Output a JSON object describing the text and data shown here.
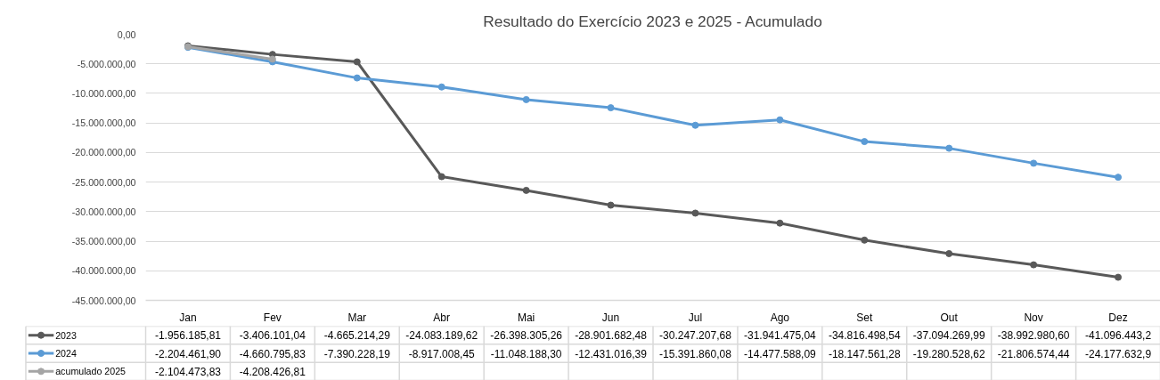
{
  "chart_data": {
    "type": "line",
    "title": "Resultado do Exercício 2023 e 2025 - Acumulado",
    "categories": [
      "Jan",
      "Fev",
      "Mar",
      "Abr",
      "Mai",
      "Jun",
      "Jul",
      "Ago",
      "Set",
      "Out",
      "Nov",
      "Dez"
    ],
    "series": [
      {
        "name": "2023",
        "color": "#595959",
        "values": [
          -1956185.81,
          -3406101.04,
          -4665214.29,
          -24083189.62,
          -26398305.26,
          -28901682.48,
          -30247207.68,
          -31941475.04,
          -34816498.54,
          -37094269.99,
          -38992980.6,
          -41096443.2
        ],
        "value_labels": [
          "-1.956.185,81",
          "-3.406.101,04",
          "-4.665.214,29",
          "-24.083.189,62",
          "-26.398.305,26",
          "-28.901.682,48",
          "-30.247.207,68",
          "-31.941.475,04",
          "-34.816.498,54",
          "-37.094.269,99",
          "-38.992.980,60",
          "-41.096.443,2"
        ]
      },
      {
        "name": "2024",
        "color": "#5b9bd5",
        "values": [
          -2204461.9,
          -4660795.83,
          -7390228.19,
          -8917008.45,
          -11048188.3,
          -12431016.39,
          -15391860.08,
          -14477588.09,
          -18147561.28,
          -19280528.62,
          -21806574.44,
          -24177632.9
        ],
        "value_labels": [
          "-2.204.461,90",
          "-4.660.795,83",
          "-7.390.228,19",
          "-8.917.008,45",
          "-11.048.188,30",
          "-12.431.016,39",
          "-15.391.860,08",
          "-14.477.588,09",
          "-18.147.561,28",
          "-19.280.528,62",
          "-21.806.574,44",
          "-24.177.632,9"
        ]
      },
      {
        "name": "acumulado 2025",
        "color": "#a5a5a5",
        "values": [
          -2104473.83,
          -4208426.81,
          null,
          null,
          null,
          null,
          null,
          null,
          null,
          null,
          null,
          null
        ],
        "value_labels": [
          "-2.104.473,83",
          "-4.208.426,81",
          null,
          null,
          null,
          null,
          null,
          null,
          null,
          null,
          null,
          null
        ]
      }
    ],
    "ylim": [
      -45000000,
      0
    ],
    "yticks": [
      {
        "value": 0,
        "label": "0,00"
      },
      {
        "value": -5000000,
        "label": "-5.000.000,00"
      },
      {
        "value": -10000000,
        "label": "-10.000.000,00"
      },
      {
        "value": -15000000,
        "label": "-15.000.000,00"
      },
      {
        "value": -20000000,
        "label": "-20.000.000,00"
      },
      {
        "value": -25000000,
        "label": "-25.000.000,00"
      },
      {
        "value": -30000000,
        "label": "-30.000.000,00"
      },
      {
        "value": -35000000,
        "label": "-35.000.000,00"
      },
      {
        "value": -40000000,
        "label": "-40.000.000,00"
      },
      {
        "value": -45000000,
        "label": "-45.000.000,00"
      }
    ],
    "grid": "y",
    "marker": "circle",
    "line_style": "solid",
    "legend": "bottom left"
  }
}
